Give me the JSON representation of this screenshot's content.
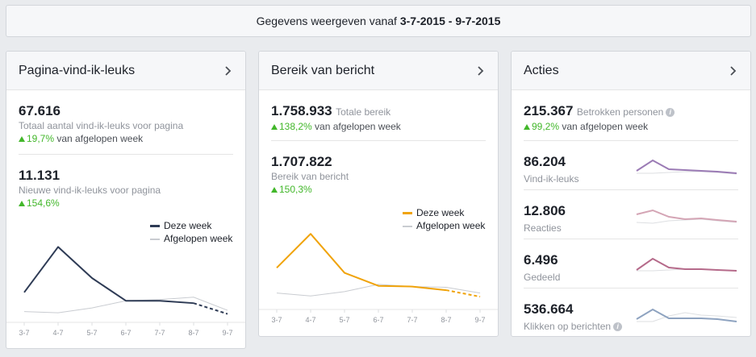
{
  "header": {
    "prefix": "Gegevens weergeven vanaf",
    "date_range": "3-7-2015 - 9-7-2015"
  },
  "card1": {
    "title": "Pagina-vind-ik-leuks",
    "total_value": "67.616",
    "total_label": "Totaal aantal vind-ik-leuks voor pagina",
    "total_change": "19,7%",
    "total_change_suffix": "van afgelopen week",
    "new_value": "11.131",
    "new_label": "Nieuwe vind-ik-leuks voor pagina",
    "new_change": "154,6%",
    "legend_this": "Deze week",
    "legend_last": "Afgelopen week",
    "series_color": "#2e3b55"
  },
  "card2": {
    "title": "Bereik van bericht",
    "reach_value": "1.758.933",
    "reach_inline_label": "Totale bereik",
    "reach_change": "138,2%",
    "reach_change_suffix": "van afgelopen week",
    "post_value": "1.707.822",
    "post_label": "Bereik van bericht",
    "post_change": "150,3%",
    "legend_this": "Deze week",
    "legend_last": "Afgelopen week",
    "series_color": "#f0a30a"
  },
  "card3": {
    "title": "Acties",
    "engaged_value": "215.367",
    "engaged_label": "Betrokken personen",
    "engaged_change": "99,2%",
    "engaged_change_suffix": "van afgelopen week",
    "metrics": [
      {
        "value": "86.204",
        "label": "Vind-ik-leuks",
        "color": "#9b7bb5"
      },
      {
        "value": "12.806",
        "label": "Reacties",
        "color": "#d4a5b5"
      },
      {
        "value": "6.496",
        "label": "Gedeeld",
        "color": "#b56a8a"
      },
      {
        "value": "536.664",
        "label": "Klikken op berichten",
        "color": "#8ea3c0"
      }
    ]
  },
  "chart_data": [
    {
      "type": "line",
      "x": [
        "3-7",
        "4-7",
        "5-7",
        "6-7",
        "7-7",
        "8-7",
        "9-7"
      ],
      "series": [
        {
          "name": "Deze week",
          "values": [
            2100,
            5900,
            3300,
            1400,
            1400,
            1200,
            300
          ]
        },
        {
          "name": "Afgelopen week",
          "values": [
            500,
            400,
            800,
            1400,
            1500,
            1700,
            600
          ]
        }
      ]
    },
    {
      "type": "line",
      "x": [
        "3-7",
        "4-7",
        "5-7",
        "6-7",
        "7-7",
        "8-7",
        "9-7"
      ],
      "series": [
        {
          "name": "Deze week",
          "values": [
            510000,
            980000,
            440000,
            260000,
            250000,
            200000,
            110000
          ]
        },
        {
          "name": "Afgelopen week",
          "values": [
            160000,
            120000,
            180000,
            280000,
            250000,
            240000,
            160000
          ]
        }
      ]
    }
  ]
}
